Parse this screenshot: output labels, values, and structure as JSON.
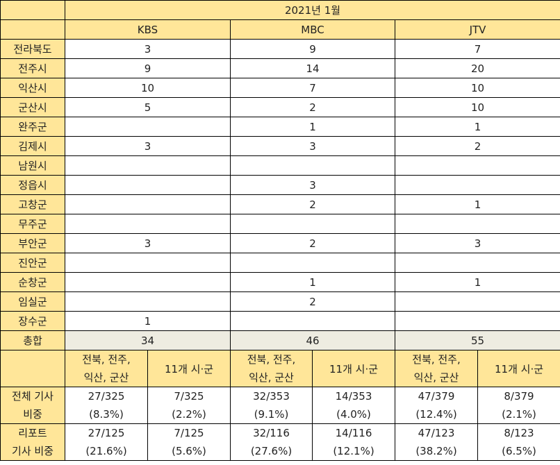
{
  "header": {
    "period": "2021년 1월",
    "channels": [
      "KBS",
      "MBC",
      "JTV"
    ]
  },
  "rows": [
    {
      "region": "전라북도",
      "values": [
        "3",
        "9",
        "7"
      ]
    },
    {
      "region": "전주시",
      "values": [
        "9",
        "14",
        "20"
      ]
    },
    {
      "region": "익산시",
      "values": [
        "10",
        "7",
        "10"
      ]
    },
    {
      "region": "군산시",
      "values": [
        "5",
        "2",
        "10"
      ]
    },
    {
      "region": "완주군",
      "values": [
        "",
        "1",
        "1"
      ]
    },
    {
      "region": "김제시",
      "values": [
        "3",
        "3",
        "2"
      ]
    },
    {
      "region": "남원시",
      "values": [
        "",
        "",
        ""
      ]
    },
    {
      "region": "정읍시",
      "values": [
        "",
        "3",
        ""
      ]
    },
    {
      "region": "고창군",
      "values": [
        "",
        "2",
        "1"
      ]
    },
    {
      "region": "무주군",
      "values": [
        "",
        "",
        ""
      ]
    },
    {
      "region": "부안군",
      "values": [
        "3",
        "2",
        "3"
      ]
    },
    {
      "region": "진안군",
      "values": [
        "",
        "",
        ""
      ]
    },
    {
      "region": "순창군",
      "values": [
        "",
        "1",
        "1"
      ]
    },
    {
      "region": "임실군",
      "values": [
        "",
        "2",
        ""
      ]
    },
    {
      "region": "장수군",
      "values": [
        "1",
        "",
        ""
      ]
    }
  ],
  "total": {
    "label": "총합",
    "values": [
      "34",
      "46",
      "55"
    ]
  },
  "subheader": {
    "group_a_line1": "전북, 전주,",
    "group_a_line2": "익산, 군산",
    "group_b": "11개 시·군"
  },
  "share_all": {
    "label_line1": "전체 기사",
    "label_line2": "비중",
    "cells": [
      {
        "count": "27/325",
        "pct": "(8.3%)"
      },
      {
        "count": "7/325",
        "pct": "(2.2%)"
      },
      {
        "count": "32/353",
        "pct": "(9.1%)"
      },
      {
        "count": "14/353",
        "pct": "(4.0%)"
      },
      {
        "count": "47/379",
        "pct": "(12.4%)"
      },
      {
        "count": "8/379",
        "pct": "(2.1%)"
      }
    ]
  },
  "share_report": {
    "label_line1": "리포트",
    "label_line2": "기사 비중",
    "cells": [
      {
        "count": "27/125",
        "pct": "(21.6%)"
      },
      {
        "count": "7/125",
        "pct": "(5.6%)"
      },
      {
        "count": "32/116",
        "pct": "(27.6%)"
      },
      {
        "count": "14/116",
        "pct": "(12.1%)"
      },
      {
        "count": "47/123",
        "pct": "(38.2%)"
      },
      {
        "count": "8/123",
        "pct": "(6.5%)"
      }
    ]
  }
}
